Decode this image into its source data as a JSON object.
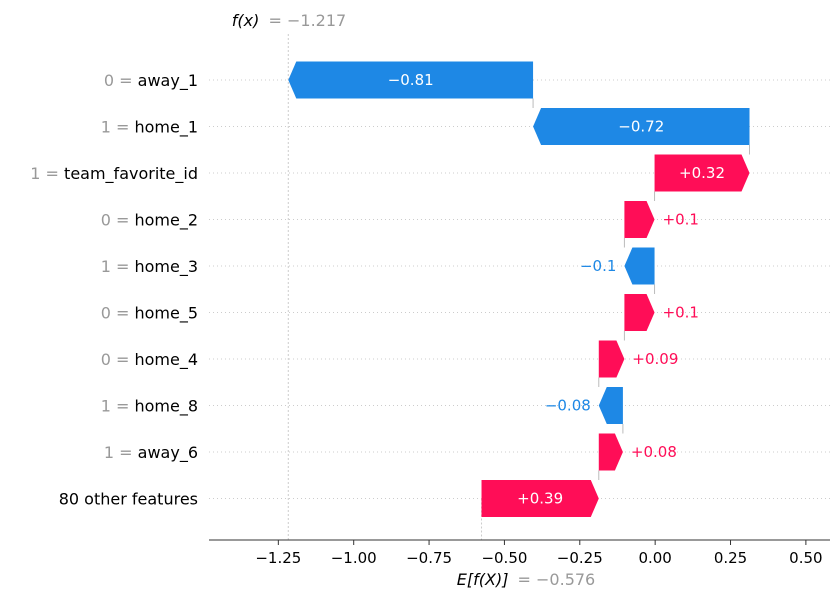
{
  "chart_data": {
    "type": "waterfall",
    "fx_label": "f(x)",
    "fx_value": "= −1.217",
    "efx_label": "E[f(X)]",
    "efx_value": "= −0.576",
    "f_x": -1.217,
    "e_f_x": -0.576,
    "xlim": [
      -1.48,
      0.58
    ],
    "x_ticks": [
      {
        "value": -1.25,
        "label": "−1.25"
      },
      {
        "value": -1.0,
        "label": "−1.00"
      },
      {
        "value": -0.75,
        "label": "−0.75"
      },
      {
        "value": -0.5,
        "label": "−0.50"
      },
      {
        "value": -0.25,
        "label": "−0.25"
      },
      {
        "value": 0.0,
        "label": "0.00"
      },
      {
        "value": 0.25,
        "label": "0.25"
      },
      {
        "value": 0.5,
        "label": "0.50"
      }
    ],
    "features": [
      {
        "value": "0",
        "name": "away_1",
        "start": -0.405,
        "end": -1.217,
        "label": "−0.81"
      },
      {
        "value": "1",
        "name": "home_1",
        "start": 0.313,
        "end": -0.405,
        "label": "−0.72"
      },
      {
        "value": "1",
        "name": "team_favorite_id",
        "start": -0.002,
        "end": 0.313,
        "label": "+0.32"
      },
      {
        "value": "0",
        "name": "home_2",
        "start": -0.102,
        "end": -0.002,
        "label": "+0.1"
      },
      {
        "value": "1",
        "name": "home_3",
        "start": -0.002,
        "end": -0.102,
        "label": "−0.1"
      },
      {
        "value": "0",
        "name": "home_5",
        "start": -0.102,
        "end": -0.002,
        "label": "+0.1"
      },
      {
        "value": "0",
        "name": "home_4",
        "start": -0.187,
        "end": -0.102,
        "label": "+0.09"
      },
      {
        "value": "1",
        "name": "home_8",
        "start": -0.107,
        "end": -0.187,
        "label": "−0.08"
      },
      {
        "value": "1",
        "name": "away_6",
        "start": -0.187,
        "end": -0.107,
        "label": "+0.08"
      },
      {
        "value": "",
        "name": "80 other features",
        "start": -0.576,
        "end": -0.187,
        "label": "+0.39"
      }
    ],
    "colors": {
      "positive": "#ff0d57",
      "negative": "#1e88e5",
      "value_gray": "#999999",
      "text": "#000000",
      "grid": "#cccccc"
    }
  }
}
